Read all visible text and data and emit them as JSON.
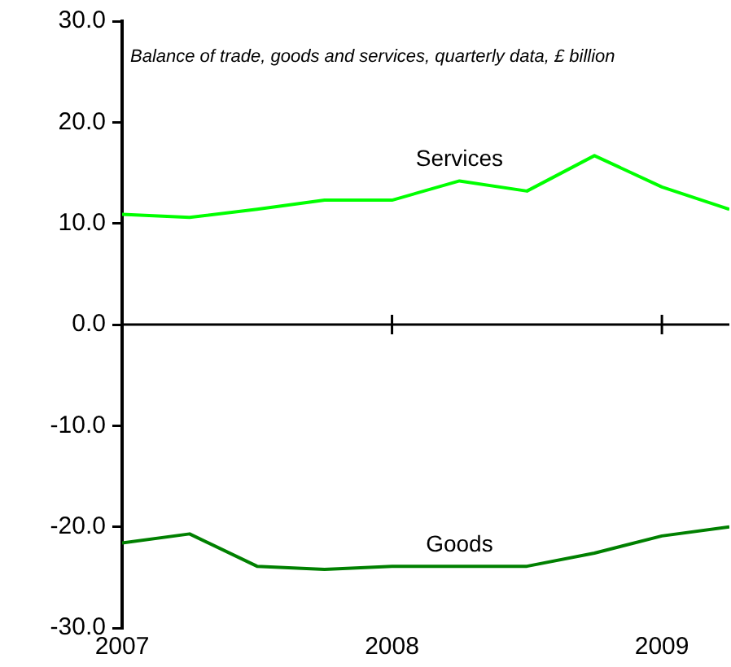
{
  "chart_data": {
    "type": "line",
    "title": "Balance of trade, goods and services, quarterly data, £ billion",
    "x": [
      2007,
      2007.25,
      2007.5,
      2007.75,
      2008,
      2008.25,
      2008.5,
      2008.75,
      2009,
      2009.25
    ],
    "series": [
      {
        "name": "Services",
        "color": "#00ff00",
        "values": [
          10.9,
          10.6,
          11.4,
          12.3,
          12.3,
          14.2,
          13.2,
          16.7,
          13.6,
          11.4
        ]
      },
      {
        "name": "Goods",
        "color": "#008000",
        "values": [
          -21.6,
          -20.7,
          -23.9,
          -24.2,
          -23.9,
          -23.9,
          -23.9,
          -22.6,
          -20.9,
          -20.0
        ]
      }
    ],
    "xlim": [
      2007,
      2009.25
    ],
    "xticks": [
      2007,
      2008,
      2009
    ],
    "ylim": [
      -30,
      30
    ],
    "yticks": [
      {
        "value": -30,
        "label": "-30.0"
      },
      {
        "value": -20,
        "label": "-20.0"
      },
      {
        "value": -10,
        "label": "-10.0"
      },
      {
        "value": 0,
        "label": "0.0"
      },
      {
        "value": 10,
        "label": "10.0"
      },
      {
        "value": 20,
        "label": "20.0"
      },
      {
        "value": 30,
        "label": "30.0"
      }
    ],
    "ref_lines": [
      {
        "axis": "y",
        "value": 0,
        "color": "#000000"
      }
    ],
    "grid": false,
    "legend": false,
    "marker": "none",
    "line_style": "solid"
  }
}
